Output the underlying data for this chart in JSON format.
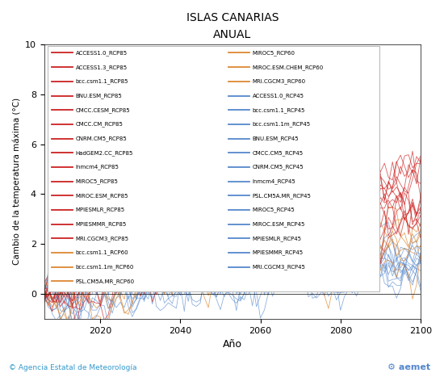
{
  "title": "ISLAS CANARIAS",
  "subtitle": "ANUAL",
  "xlabel": "Año",
  "ylabel": "Cambio de la temperatura máxima (°C)",
  "ylim": [
    -1,
    10
  ],
  "xlim": [
    2006,
    2100
  ],
  "yticks": [
    0,
    2,
    4,
    6,
    8,
    10
  ],
  "xticks": [
    2020,
    2040,
    2060,
    2080,
    2100
  ],
  "rcp85_color": "#cc2222",
  "rcp60_color": "#dd8833",
  "rcp45_color": "#5588cc",
  "footer_left": "© Agencia Estatal de Meteorología",
  "footer_left_color": "#3399cc",
  "legend_left_labels": [
    "ACCESS1.0_RCP85",
    "ACCESS1.3_RCP85",
    "bcc.csm1.1_RCP85",
    "BNU.ESM_RCP85",
    "CMCC.CESM_RCP85",
    "CMCC.CM_RCP85",
    "CNRM.CM5_RCP85",
    "HadGEM2.CC_RCP85",
    "Inmcm4_RCP85",
    "MIROC5_RCP85",
    "MIROC.ESM_RCP85",
    "MPIESMLR_RCP85",
    "MPIESMMR_RCP85",
    "MRI.CGCM3_RCP85",
    "bcc.csm1.1_RCP60",
    "bcc.csm1.1m_RCP60",
    "PSL.CM5A.MR_RCP60"
  ],
  "legend_left_colors": [
    "#cc2222",
    "#cc2222",
    "#cc2222",
    "#cc2222",
    "#cc2222",
    "#cc2222",
    "#cc2222",
    "#cc2222",
    "#cc2222",
    "#cc2222",
    "#cc2222",
    "#cc2222",
    "#cc2222",
    "#cc2222",
    "#dd8833",
    "#dd8833",
    "#dd8833"
  ],
  "legend_right_labels": [
    "MIROC5_RCP60",
    "MIROC.ESM.CHEM_RCP60",
    "MRI.CGCM3_RCP60",
    "ACCESS1.0_RCP45",
    "bcc.csm1.1_RCP45",
    "bcc.csm1.1m_RCP45",
    "BNU.ESM_RCP45",
    "CMCC.CM5_RCP45",
    "CNRM.CM5_RCP45",
    "Inmcm4_RCP45",
    "PSL.CM5A.MR_RCP45",
    "MIROC5_RCP45",
    "MIROC.ESM_RCP45",
    "MPIESMLR_RCP45",
    "MPIESMMR_RCP45",
    "MRI.CGCM3_RCP45"
  ],
  "legend_right_colors": [
    "#dd8833",
    "#dd8833",
    "#dd8833",
    "#5588cc",
    "#5588cc",
    "#5588cc",
    "#5588cc",
    "#5588cc",
    "#5588cc",
    "#5588cc",
    "#5588cc",
    "#5588cc",
    "#5588cc",
    "#5588cc",
    "#5588cc",
    "#5588cc"
  ]
}
